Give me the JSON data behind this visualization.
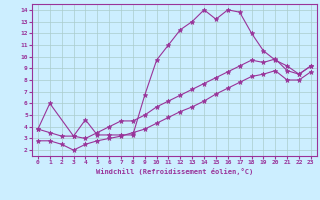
{
  "title": "",
  "xlabel": "Windchill (Refroidissement éolien,°C)",
  "ylabel": "",
  "bg_color": "#cceeff",
  "line_color": "#993399",
  "grid_color": "#aacccc",
  "xlim": [
    -0.5,
    23.5
  ],
  "ylim": [
    1.5,
    14.5
  ],
  "xticks": [
    0,
    1,
    2,
    3,
    4,
    5,
    6,
    7,
    8,
    9,
    10,
    11,
    12,
    13,
    14,
    15,
    16,
    17,
    18,
    19,
    20,
    21,
    22,
    23
  ],
  "yticks": [
    2,
    3,
    4,
    5,
    6,
    7,
    8,
    9,
    10,
    11,
    12,
    13,
    14
  ],
  "line1_x": [
    0,
    1,
    3,
    4,
    5,
    6,
    7,
    8,
    9,
    10,
    11,
    12,
    13,
    14,
    15,
    16,
    17,
    18,
    19,
    20,
    21,
    22,
    23
  ],
  "line1_y": [
    3.8,
    6.0,
    3.2,
    4.6,
    3.3,
    3.3,
    3.3,
    3.3,
    6.7,
    9.7,
    11.0,
    12.3,
    13.0,
    14.0,
    13.2,
    14.0,
    13.8,
    12.0,
    10.5,
    9.7,
    9.2,
    8.5,
    9.2
  ],
  "line2_x": [
    0,
    1,
    2,
    3,
    4,
    5,
    6,
    7,
    8,
    9,
    10,
    11,
    12,
    13,
    14,
    15,
    16,
    17,
    18,
    19,
    20,
    21,
    22,
    23
  ],
  "line2_y": [
    3.8,
    3.5,
    3.2,
    3.2,
    3.0,
    3.5,
    4.0,
    4.5,
    4.5,
    5.0,
    5.7,
    6.2,
    6.7,
    7.2,
    7.7,
    8.2,
    8.7,
    9.2,
    9.7,
    9.5,
    9.8,
    8.8,
    8.5,
    9.2
  ],
  "line3_x": [
    0,
    1,
    2,
    3,
    4,
    5,
    6,
    7,
    8,
    9,
    10,
    11,
    12,
    13,
    14,
    15,
    16,
    17,
    18,
    19,
    20,
    21,
    22,
    23
  ],
  "line3_y": [
    2.8,
    2.8,
    2.5,
    2.0,
    2.5,
    2.8,
    3.0,
    3.2,
    3.5,
    3.8,
    4.3,
    4.8,
    5.3,
    5.7,
    6.2,
    6.8,
    7.3,
    7.8,
    8.3,
    8.5,
    8.8,
    8.0,
    8.0,
    8.7
  ]
}
